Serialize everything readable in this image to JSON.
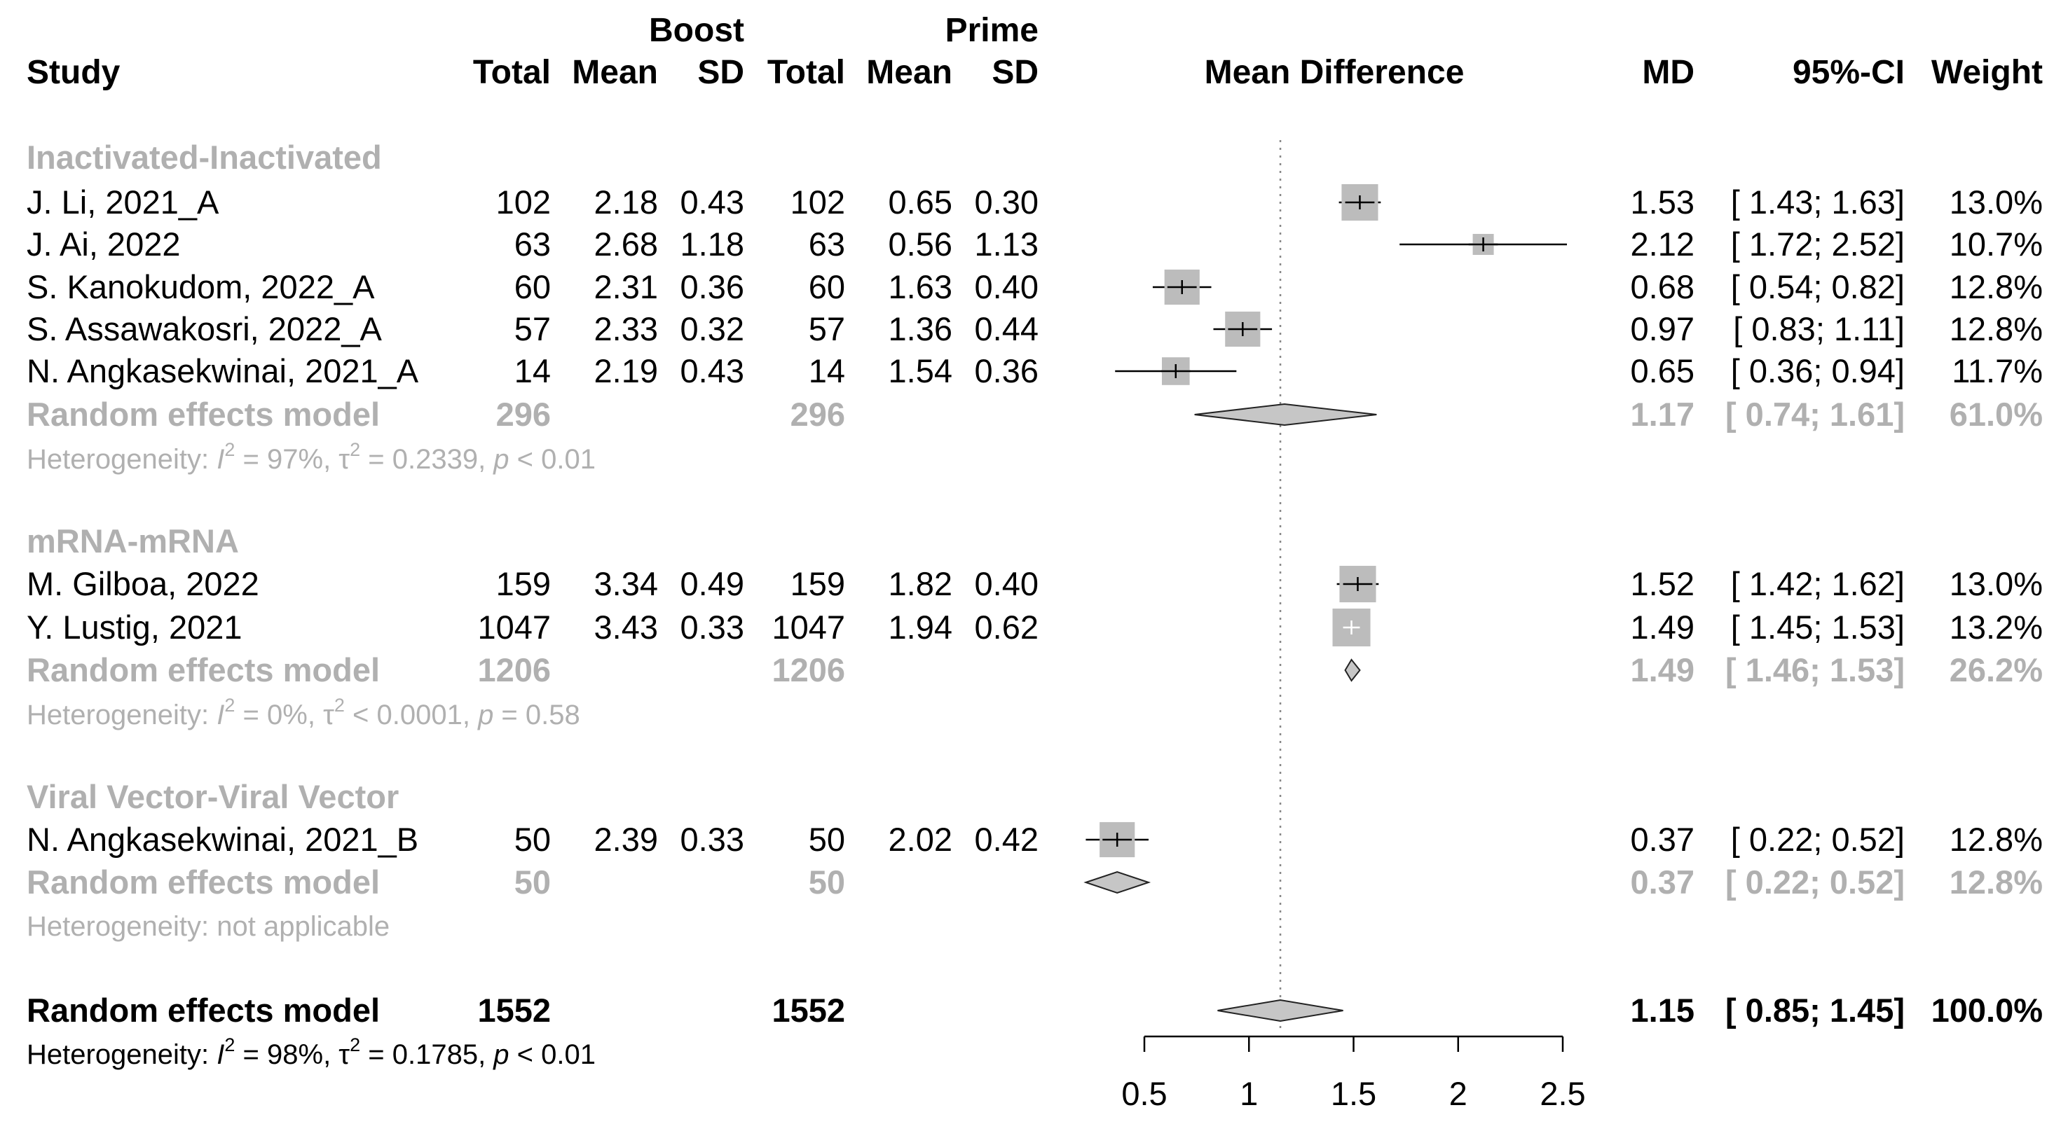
{
  "chart_data": {
    "type": "forest",
    "title": "Mean Difference",
    "colors": {
      "text": "#000000",
      "muted": "#b0b0b0",
      "box": "#bcbcbc",
      "diamond": "#c6c6c6",
      "line": "#000000",
      "ref": "#888888"
    },
    "header": {
      "group_boost": "Boost",
      "group_prime": "Prime",
      "study": "Study",
      "total": "Total",
      "mean": "Mean",
      "sd": "SD",
      "plot": "Mean Difference",
      "md": "MD",
      "ci": "95%-CI",
      "weight": "Weight"
    },
    "xaxis": {
      "min": 0.5,
      "max": 2.5,
      "ticks": [
        "0.5",
        "1",
        "1.5",
        "2",
        "2.5"
      ],
      "tick_values": [
        0.5,
        1,
        1.5,
        2,
        2.5
      ]
    },
    "reference_line": 1.15,
    "subgroups": [
      {
        "name": "Inactivated-Inactivated",
        "studies": [
          {
            "study": "J. Li, 2021_A",
            "b_total": "102",
            "b_mean": "2.18",
            "b_sd": "0.43",
            "p_total": "102",
            "p_mean": "0.65",
            "p_sd": "0.30",
            "md": 1.53,
            "lo": 1.43,
            "hi": 1.63,
            "md_text": "1.53",
            "ci_text": "[ 1.43; 1.63]",
            "weight": "13.0%",
            "weight_value": 13.0
          },
          {
            "study": "J. Ai, 2022",
            "b_total": "63",
            "b_mean": "2.68",
            "b_sd": "1.18",
            "p_total": "63",
            "p_mean": "0.56",
            "p_sd": "1.13",
            "md": 2.12,
            "lo": 1.72,
            "hi": 2.52,
            "md_text": "2.12",
            "ci_text": "[ 1.72; 2.52]",
            "weight": "10.7%",
            "weight_value": 10.7
          },
          {
            "study": "S. Kanokudom, 2022_A",
            "b_total": "60",
            "b_mean": "2.31",
            "b_sd": "0.36",
            "p_total": "60",
            "p_mean": "1.63",
            "p_sd": "0.40",
            "md": 0.68,
            "lo": 0.54,
            "hi": 0.82,
            "md_text": "0.68",
            "ci_text": "[ 0.54; 0.82]",
            "weight": "12.8%",
            "weight_value": 12.8
          },
          {
            "study": "S. Assawakosri, 2022_A",
            "b_total": "57",
            "b_mean": "2.33",
            "b_sd": "0.32",
            "p_total": "57",
            "p_mean": "1.36",
            "p_sd": "0.44",
            "md": 0.97,
            "lo": 0.83,
            "hi": 1.11,
            "md_text": "0.97",
            "ci_text": "[ 0.83; 1.11]",
            "weight": "12.8%",
            "weight_value": 12.8
          },
          {
            "study": "N. Angkasekwinai, 2021_A",
            "b_total": "14",
            "b_mean": "2.19",
            "b_sd": "0.43",
            "p_total": "14",
            "p_mean": "1.54",
            "p_sd": "0.36",
            "md": 0.65,
            "lo": 0.36,
            "hi": 0.94,
            "md_text": "0.65",
            "ci_text": "[ 0.36; 0.94]",
            "weight": "11.7%",
            "weight_value": 11.7
          }
        ],
        "summary": {
          "label": "Random effects model",
          "b_total": "296",
          "p_total": "296",
          "md": 1.17,
          "lo": 0.74,
          "hi": 1.61,
          "md_text": "1.17",
          "ci_text": "[ 0.74; 1.61]",
          "weight": "61.0%"
        },
        "heterogeneity": {
          "prefix": "Heterogeneity: ",
          "i2": "97%",
          "tau2_rel": "=",
          "tau2": "0.2339",
          "p_rel": "<",
          "p": "0.01",
          "na": ""
        }
      },
      {
        "name": "mRNA-mRNA",
        "studies": [
          {
            "study": "M. Gilboa, 2022",
            "b_total": "159",
            "b_mean": "3.34",
            "b_sd": "0.49",
            "p_total": "159",
            "p_mean": "1.82",
            "p_sd": "0.40",
            "md": 1.52,
            "lo": 1.42,
            "hi": 1.62,
            "md_text": "1.52",
            "ci_text": "[ 1.42; 1.62]",
            "weight": "13.0%",
            "weight_value": 13.0
          },
          {
            "study": "Y. Lustig, 2021",
            "b_total": "1047",
            "b_mean": "3.43",
            "b_sd": "0.33",
            "p_total": "1047",
            "p_mean": "1.94",
            "p_sd": "0.62",
            "md": 1.49,
            "lo": 1.45,
            "hi": 1.53,
            "md_text": "1.49",
            "ci_text": "[ 1.45; 1.53]",
            "weight": "13.2%",
            "weight_value": 13.2
          }
        ],
        "summary": {
          "label": "Random effects model",
          "b_total": "1206",
          "p_total": "1206",
          "md": 1.49,
          "lo": 1.46,
          "hi": 1.53,
          "md_text": "1.49",
          "ci_text": "[ 1.46; 1.53]",
          "weight": "26.2%"
        },
        "heterogeneity": {
          "prefix": "Heterogeneity: ",
          "i2": "0%",
          "tau2_rel": "<",
          "tau2": "0.0001",
          "p_rel": "=",
          "p": "0.58",
          "na": ""
        }
      },
      {
        "name": "Viral Vector-Viral Vector",
        "studies": [
          {
            "study": "N. Angkasekwinai, 2021_B",
            "b_total": "50",
            "b_mean": "2.39",
            "b_sd": "0.33",
            "p_total": "50",
            "p_mean": "2.02",
            "p_sd": "0.42",
            "md": 0.37,
            "lo": 0.22,
            "hi": 0.52,
            "md_text": "0.37",
            "ci_text": "[ 0.22; 0.52]",
            "weight": "12.8%",
            "weight_value": 12.8
          }
        ],
        "summary": {
          "label": "Random effects model",
          "b_total": "50",
          "p_total": "50",
          "md": 0.37,
          "lo": 0.22,
          "hi": 0.52,
          "md_text": "0.37",
          "ci_text": "[ 0.22; 0.52]",
          "weight": "12.8%"
        },
        "heterogeneity": {
          "prefix": "Heterogeneity: ",
          "i2": "",
          "tau2_rel": "",
          "tau2": "",
          "p_rel": "",
          "p": "",
          "na": "not applicable"
        }
      }
    ],
    "overall": {
      "label": "Random effects model",
      "b_total": "1552",
      "p_total": "1552",
      "md": 1.15,
      "lo": 0.85,
      "hi": 1.45,
      "md_text": "1.15",
      "ci_text": "[ 0.85; 1.45]",
      "weight": "100.0%",
      "heterogeneity": {
        "prefix": "Heterogeneity: ",
        "i2": "98%",
        "tau2_rel": "=",
        "tau2": "0.1785",
        "p_rel": "<",
        "p": "0.01"
      }
    }
  }
}
